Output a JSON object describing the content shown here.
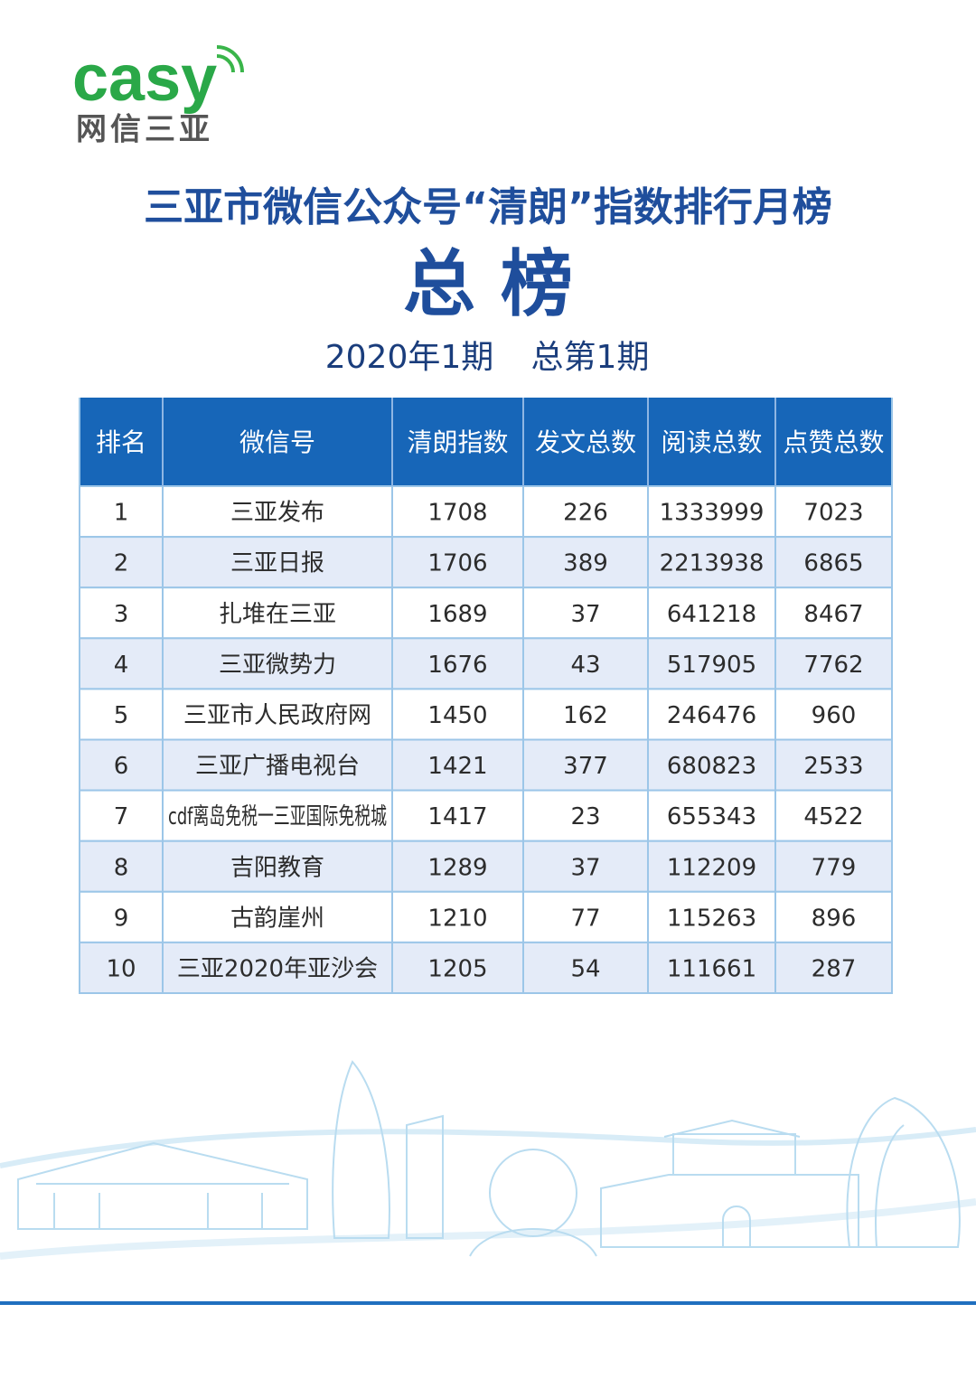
{
  "logo": {
    "brand": "casy",
    "name": "网信三亚"
  },
  "header": {
    "title": "三亚市微信公众号“清朗”指数排行月榜",
    "subtitle": "总 榜",
    "issue": "2020年1期",
    "issue_total": "总第1期"
  },
  "table": {
    "columns": [
      "排名",
      "微信号",
      "清朗指数",
      "发文总数",
      "阅读总数",
      "点赞总数"
    ],
    "rows": [
      [
        1,
        "三亚发布",
        1708,
        226,
        1333999,
        7023
      ],
      [
        2,
        "三亚日报",
        1706,
        389,
        2213938,
        6865
      ],
      [
        3,
        "扎堆在三亚",
        1689,
        37,
        641218,
        8467
      ],
      [
        4,
        "三亚微势力",
        1676,
        43,
        517905,
        7762
      ],
      [
        5,
        "三亚市人民政府网",
        1450,
        162,
        246476,
        960
      ],
      [
        6,
        "三亚广播电视台",
        1421,
        377,
        680823,
        2533
      ],
      [
        7,
        "cdf离岛免税一三亚国际免税城",
        1417,
        23,
        655343,
        4522
      ],
      [
        8,
        "吉阳教育",
        1289,
        37,
        112209,
        779
      ],
      [
        9,
        "古韵崖州",
        1210,
        77,
        115263,
        896
      ],
      [
        10,
        "三亚2020年亚沙会",
        1205,
        54,
        111661,
        287
      ]
    ]
  }
}
